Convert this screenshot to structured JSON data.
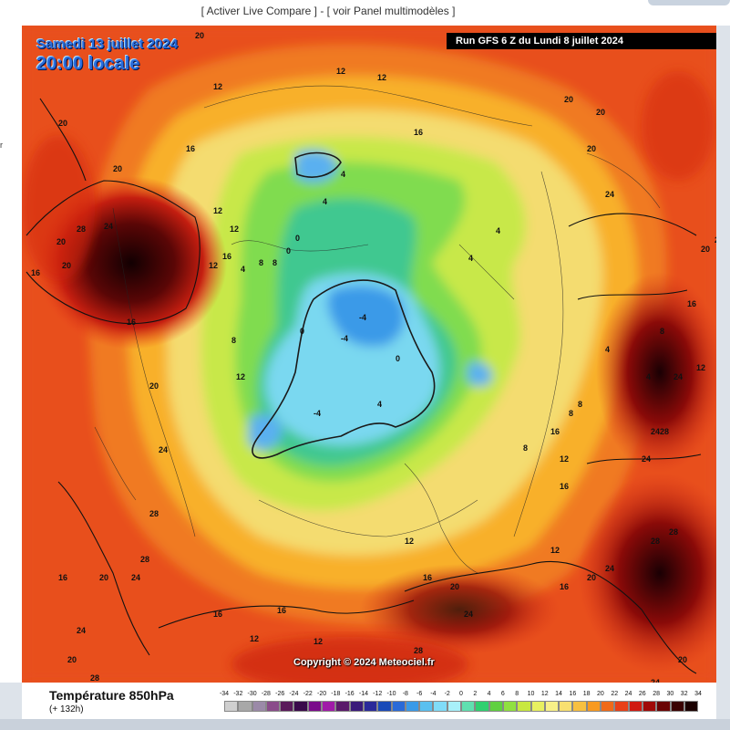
{
  "header": {
    "link_live_compare": "[ Activer Live Compare ]",
    "separator": "-",
    "link_panel": "[ voir Panel multimodèles ]"
  },
  "map": {
    "date_label": "Samedi 13 juillet 2024",
    "time_label": "20:00 locale",
    "run_label": "Run GFS 6 Z du Lundi 8 juillet 2024",
    "copyright": "Copyright © 2024 Meteociel.fr",
    "contour_labels": [
      "20",
      "12",
      "12",
      "12",
      "16",
      "16",
      "20",
      "20",
      "20",
      "20",
      "20",
      "24",
      "28",
      "24",
      "20",
      "20",
      "16",
      "16",
      "12",
      "12",
      "12",
      "8",
      "8",
      "4",
      "4",
      "4",
      "0",
      "0",
      "-4",
      "-4",
      "0",
      "4",
      "8",
      "12",
      "16",
      "20",
      "24",
      "28",
      "24",
      "28",
      "24",
      "24",
      "28",
      "28",
      "24",
      "20",
      "16",
      "12",
      "8",
      "4",
      "0",
      "-4",
      "4",
      "8",
      "12",
      "16",
      "20",
      "24",
      "28",
      "24",
      "20",
      "16",
      "12",
      "12",
      "16",
      "20",
      "24",
      "28",
      "16",
      "16",
      "16",
      "12",
      "8",
      "4",
      "4",
      "8",
      "12",
      "16",
      "20",
      "24",
      "28",
      "20",
      "24"
    ],
    "colors": {
      "hot": "#1a0004",
      "warm": "#e0401a",
      "mild": "#f7b62c",
      "cool": "#8ee04a",
      "cold": "#3a9de8",
      "ocean_edge": "#e83a1a"
    }
  },
  "legend": {
    "title": "Température 850hPa",
    "subtitle": "(+ 132h)",
    "scale_values": [
      "-34",
      "-32",
      "-30",
      "-28",
      "-26",
      "-24",
      "-22",
      "-20",
      "-18",
      "-16",
      "-14",
      "-12",
      "-10",
      "-8",
      "-6",
      "-4",
      "-2",
      "0",
      "2",
      "4",
      "6",
      "8",
      "10",
      "12",
      "14",
      "16",
      "18",
      "20",
      "22",
      "24",
      "26",
      "28",
      "30",
      "32",
      "34"
    ],
    "scale_colors": [
      "#cfcfcf",
      "#a8a8a8",
      "#9b8aa8",
      "#8a4c8a",
      "#5a1a5a",
      "#3a0a4a",
      "#7a0a8a",
      "#a01aa8",
      "#5a1a6a",
      "#3a1a7a",
      "#2a2a9a",
      "#1a4ab8",
      "#2a6ad8",
      "#3a9ae8",
      "#5ac0f0",
      "#80dcf8",
      "#a8f0fa",
      "#60e0b0",
      "#30d070",
      "#60d040",
      "#90e040",
      "#c8e840",
      "#e8f060",
      "#f8f088",
      "#f8e070",
      "#f8c040",
      "#f89a20",
      "#f06a18",
      "#e84018",
      "#d01a10",
      "#a00a08",
      "#6a0404",
      "#3a0202",
      "#1a0000"
    ]
  }
}
